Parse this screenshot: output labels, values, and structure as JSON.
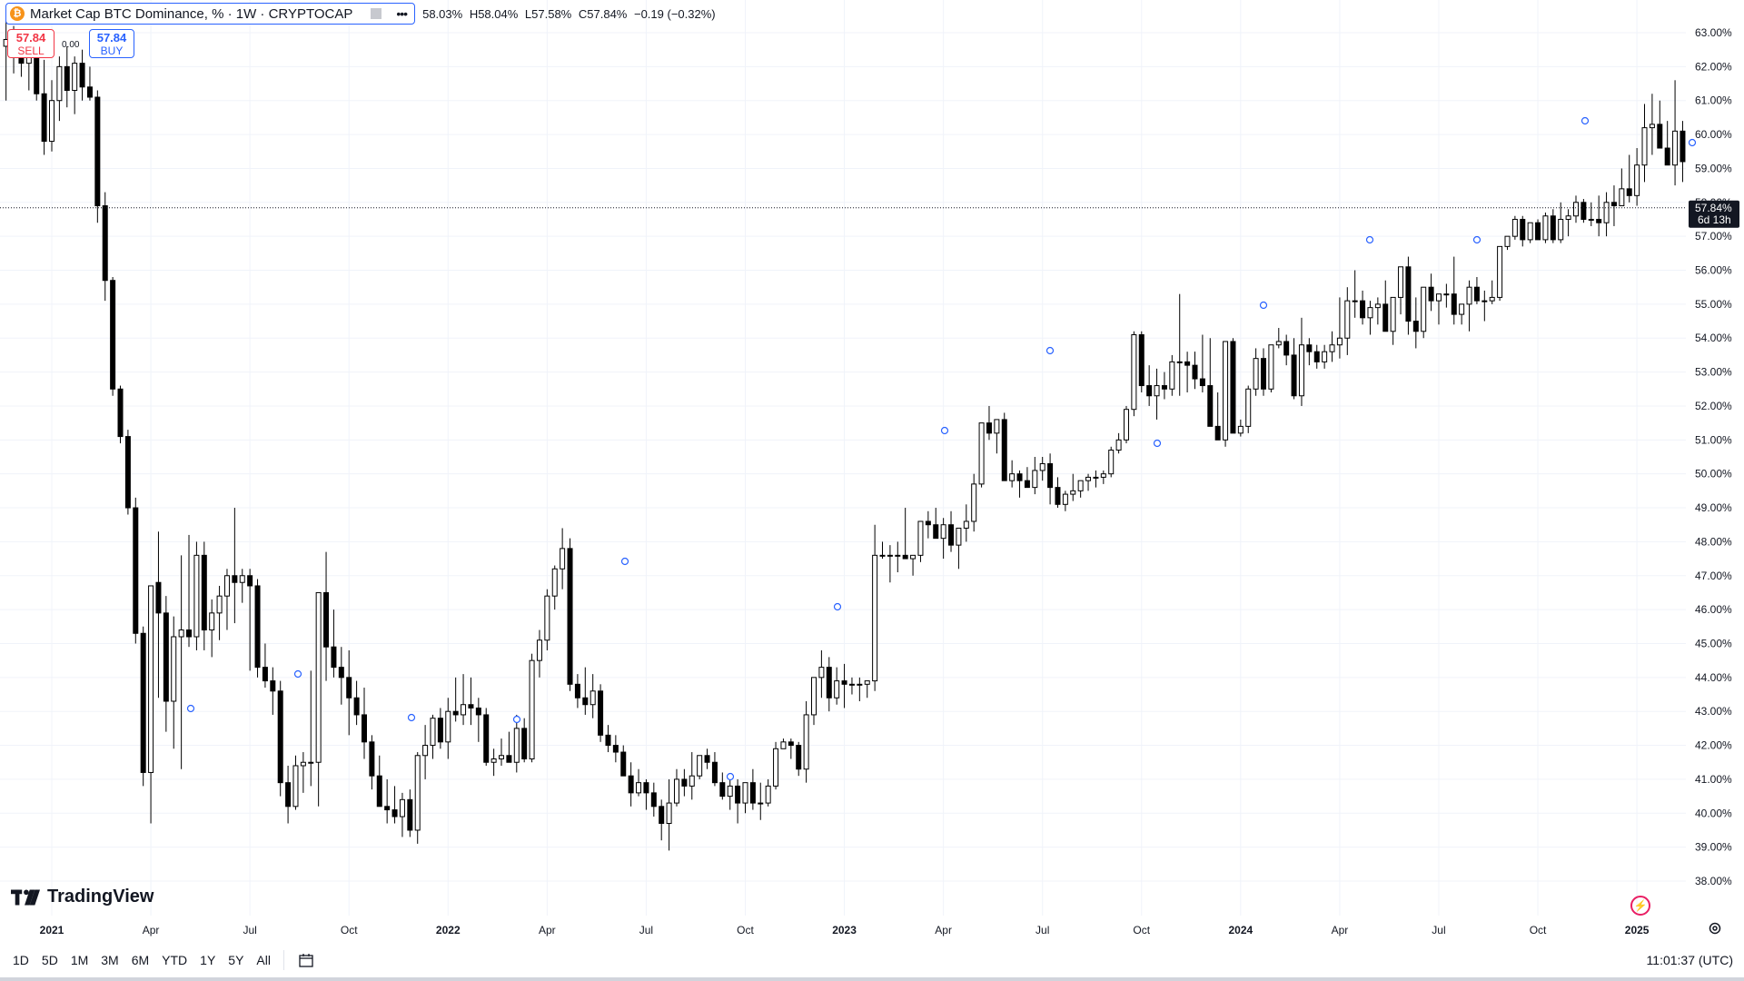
{
  "legend": {
    "title": "Market Cap BTC Dominance, % · 1W · CRYPTOCAP",
    "open": "58.03%",
    "high": "H58.04%",
    "low": "L57.58%",
    "close": "C57.84%",
    "change": "−0.19 (−0.32%)",
    "menu": "•••"
  },
  "trade": {
    "sell_value": "57.84",
    "sell_label": "SELL",
    "buy_value": "57.84",
    "buy_label": "BUY",
    "spread": "0.00"
  },
  "price_axis": {
    "current_price": "57.84%",
    "countdown": "6d 13h"
  },
  "logo": {
    "text": "TradingView"
  },
  "range_buttons": [
    "1D",
    "5D",
    "1M",
    "3M",
    "6M",
    "YTD",
    "1Y",
    "5Y",
    "All"
  ],
  "clock": "11:01:37 (UTC)",
  "colors": {
    "up": "#ffffff",
    "down": "#000000",
    "wick": "#000000",
    "accent": "#2962ff",
    "sell": "#f23645",
    "grid": "#f0f3fa"
  },
  "icons": [
    "bitcoin-icon",
    "calendar-range-icon",
    "settings-gear-icon",
    "lightning-icon"
  ],
  "chart_data": {
    "type": "candlestick",
    "interval": "1W",
    "y_unit": "%",
    "ylim": [
      37.8,
      63.4
    ],
    "y_ticks": [
      "38.00%",
      "39.00%",
      "40.00%",
      "41.00%",
      "42.00%",
      "43.00%",
      "44.00%",
      "45.00%",
      "46.00%",
      "47.00%",
      "48.00%",
      "49.00%",
      "50.00%",
      "51.00%",
      "52.00%",
      "53.00%",
      "54.00%",
      "55.00%",
      "56.00%",
      "57.00%",
      "58.00%",
      "59.00%",
      "60.00%",
      "61.00%",
      "62.00%",
      "63.00%"
    ],
    "x_ticks": [
      {
        "label": "2021",
        "bold": true,
        "w": 0
      },
      {
        "label": "Apr",
        "w": 13
      },
      {
        "label": "Jul",
        "w": 26
      },
      {
        "label": "Oct",
        "w": 39
      },
      {
        "label": "2022",
        "bold": true,
        "w": 52
      },
      {
        "label": "Apr",
        "w": 65
      },
      {
        "label": "Jul",
        "w": 78
      },
      {
        "label": "Oct",
        "w": 91
      },
      {
        "label": "2023",
        "bold": true,
        "w": 104
      },
      {
        "label": "Apr",
        "w": 117
      },
      {
        "label": "Jul",
        "w": 130
      },
      {
        "label": "Oct",
        "w": 143
      },
      {
        "label": "2024",
        "bold": true,
        "w": 156
      },
      {
        "label": "Apr",
        "w": 169
      },
      {
        "label": "Jul",
        "w": 182
      },
      {
        "label": "Oct",
        "w": 195
      },
      {
        "label": "2025",
        "bold": true,
        "w": 208
      }
    ],
    "candles_ohlc": [
      [
        62.6,
        63.4,
        61.0,
        62.8
      ],
      [
        62.8,
        63.2,
        61.8,
        62.3
      ],
      [
        62.3,
        62.9,
        61.7,
        62.1
      ],
      [
        62.1,
        62.8,
        61.3,
        62.4
      ],
      [
        62.4,
        63.0,
        61.0,
        61.2
      ],
      [
        61.2,
        62.2,
        59.4,
        59.8
      ],
      [
        59.8,
        61.6,
        59.5,
        61.0
      ],
      [
        61.0,
        62.3,
        60.4,
        62.0
      ],
      [
        62.0,
        62.6,
        60.8,
        61.3
      ],
      [
        61.3,
        62.3,
        60.6,
        62.1
      ],
      [
        62.1,
        62.5,
        61.0,
        61.4
      ],
      [
        61.4,
        62.0,
        61.0,
        61.1
      ],
      [
        61.1,
        61.3,
        57.4,
        57.9
      ],
      [
        57.9,
        58.3,
        55.1,
        55.7
      ],
      [
        55.7,
        55.8,
        52.3,
        52.5
      ],
      [
        52.5,
        52.6,
        50.9,
        51.1
      ],
      [
        51.1,
        51.3,
        48.8,
        49.0
      ],
      [
        49.0,
        49.3,
        45.0,
        45.3
      ],
      [
        45.3,
        45.5,
        40.8,
        41.2
      ],
      [
        41.2,
        43.2,
        39.7,
        46.7
      ],
      [
        46.8,
        48.3,
        43.4,
        45.9
      ],
      [
        45.9,
        46.4,
        42.4,
        43.3
      ],
      [
        43.3,
        45.8,
        41.9,
        45.2
      ],
      [
        45.2,
        47.6,
        41.3,
        45.4
      ],
      [
        45.4,
        48.2,
        44.9,
        45.2
      ],
      [
        45.2,
        48.0,
        44.8,
        47.6
      ],
      [
        47.6,
        48.0,
        44.8,
        45.4
      ],
      [
        45.4,
        46.3,
        44.6,
        45.9
      ],
      [
        45.9,
        46.7,
        45.1,
        46.4
      ],
      [
        46.4,
        47.2,
        45.4,
        47.0
      ],
      [
        47.0,
        49.0,
        45.6,
        46.8
      ],
      [
        46.8,
        47.2,
        46.2,
        47.0
      ],
      [
        47.0,
        47.2,
        44.2,
        46.7
      ],
      [
        46.7,
        46.9,
        44.0,
        44.3
      ],
      [
        44.3,
        45.0,
        43.7,
        43.9
      ],
      [
        43.9,
        44.3,
        42.9,
        43.6
      ],
      [
        43.6,
        43.9,
        40.5,
        40.9
      ],
      [
        40.9,
        41.4,
        39.7,
        40.2
      ],
      [
        40.2,
        41.7,
        40.1,
        41.4
      ],
      [
        41.4,
        41.8,
        40.6,
        41.5
      ],
      [
        41.5,
        44.2,
        40.8,
        41.5
      ],
      [
        41.5,
        44.9,
        40.2,
        46.5
      ],
      [
        46.5,
        47.7,
        43.9,
        44.9
      ],
      [
        44.9,
        46.0,
        44.0,
        44.3
      ],
      [
        44.3,
        44.9,
        43.2,
        44.0
      ],
      [
        44.0,
        44.8,
        42.3,
        43.4
      ],
      [
        43.4,
        43.9,
        42.6,
        42.9
      ],
      [
        42.9,
        43.7,
        41.6,
        42.1
      ],
      [
        42.1,
        42.3,
        40.7,
        41.1
      ],
      [
        41.1,
        41.7,
        40.2,
        40.2
      ],
      [
        40.2,
        41.0,
        39.7,
        40.1
      ],
      [
        40.1,
        40.8,
        39.7,
        39.9
      ],
      [
        39.9,
        40.6,
        39.3,
        40.4
      ],
      [
        40.4,
        40.7,
        39.3,
        39.5
      ],
      [
        39.5,
        41.8,
        39.1,
        41.7
      ],
      [
        41.7,
        42.6,
        41.0,
        42.0
      ],
      [
        42.0,
        42.9,
        41.6,
        42.8
      ],
      [
        42.8,
        43.1,
        41.9,
        42.1
      ],
      [
        42.1,
        43.4,
        41.6,
        43.0
      ],
      [
        43.0,
        44.0,
        42.7,
        42.9
      ],
      [
        42.9,
        44.1,
        42.6,
        43.2
      ],
      [
        43.2,
        44.0,
        42.6,
        43.1
      ],
      [
        43.1,
        43.4,
        42.1,
        42.9
      ],
      [
        42.9,
        43.1,
        41.4,
        41.5
      ],
      [
        41.5,
        41.9,
        41.1,
        41.6
      ],
      [
        41.6,
        42.2,
        41.4,
        41.7
      ],
      [
        41.7,
        42.4,
        41.5,
        41.5
      ],
      [
        41.5,
        42.9,
        41.2,
        42.5
      ],
      [
        42.5,
        42.8,
        41.5,
        41.6
      ],
      [
        41.6,
        44.7,
        41.5,
        44.5
      ],
      [
        44.5,
        45.4,
        44.0,
        45.1
      ],
      [
        45.1,
        46.6,
        44.8,
        46.4
      ],
      [
        46.4,
        47.3,
        46.0,
        47.2
      ],
      [
        47.2,
        48.4,
        46.6,
        47.8
      ],
      [
        47.8,
        48.1,
        43.6,
        43.8
      ],
      [
        43.8,
        44.1,
        43.1,
        43.4
      ],
      [
        43.4,
        44.3,
        42.9,
        43.2
      ],
      [
        43.2,
        44.1,
        42.8,
        43.6
      ],
      [
        43.6,
        43.8,
        42.1,
        42.3
      ],
      [
        42.3,
        42.6,
        41.8,
        42.0
      ],
      [
        42.0,
        42.3,
        41.5,
        41.8
      ],
      [
        41.8,
        42.0,
        41.1,
        41.1
      ],
      [
        41.1,
        41.5,
        40.2,
        40.6
      ],
      [
        40.6,
        41.3,
        40.5,
        40.9
      ],
      [
        40.9,
        41.0,
        40.1,
        40.6
      ],
      [
        40.6,
        40.9,
        39.9,
        40.2
      ],
      [
        40.2,
        40.4,
        39.2,
        39.7
      ],
      [
        39.7,
        41.0,
        38.9,
        40.3
      ],
      [
        40.3,
        41.3,
        40.2,
        41.0
      ],
      [
        41.0,
        41.3,
        40.5,
        40.8
      ],
      [
        40.8,
        41.8,
        40.4,
        41.1
      ],
      [
        41.1,
        41.7,
        41.0,
        41.7
      ],
      [
        41.7,
        41.9,
        41.3,
        41.5
      ],
      [
        41.5,
        41.8,
        40.8,
        40.9
      ],
      [
        40.9,
        41.2,
        40.4,
        40.5
      ],
      [
        40.5,
        41.0,
        40.1,
        40.8
      ],
      [
        40.8,
        41.0,
        39.7,
        40.3
      ],
      [
        40.3,
        40.9,
        40.0,
        40.9
      ],
      [
        40.9,
        41.3,
        40.1,
        40.3
      ],
      [
        40.3,
        40.9,
        39.8,
        40.3
      ],
      [
        40.3,
        41.0,
        40.2,
        40.8
      ],
      [
        40.8,
        42.1,
        40.7,
        41.9
      ],
      [
        41.9,
        42.2,
        41.9,
        42.1
      ],
      [
        42.1,
        42.2,
        41.6,
        42.0
      ],
      [
        42.0,
        42.1,
        41.1,
        41.3
      ],
      [
        41.3,
        43.3,
        40.9,
        42.9
      ],
      [
        42.9,
        44.0,
        42.6,
        44.0
      ],
      [
        44.0,
        44.8,
        43.4,
        44.3
      ],
      [
        44.3,
        44.6,
        43.0,
        43.4
      ],
      [
        43.4,
        44.3,
        43.2,
        43.9
      ],
      [
        43.9,
        44.4,
        43.1,
        43.8
      ],
      [
        43.8,
        44.0,
        43.5,
        43.8
      ],
      [
        43.8,
        44.0,
        43.3,
        43.8
      ],
      [
        43.8,
        43.9,
        43.4,
        43.9
      ],
      [
        43.9,
        48.5,
        43.6,
        47.6
      ],
      [
        47.6,
        48.0,
        47.5,
        47.6
      ],
      [
        47.6,
        47.9,
        46.8,
        47.6
      ],
      [
        47.6,
        48.0,
        47.1,
        47.6
      ],
      [
        47.6,
        49.0,
        47.5,
        47.5
      ],
      [
        47.5,
        47.5,
        47.0,
        47.6
      ],
      [
        47.6,
        48.6,
        47.4,
        48.6
      ],
      [
        48.6,
        48.9,
        48.1,
        48.5
      ],
      [
        48.5,
        49.0,
        48.3,
        48.1
      ],
      [
        48.1,
        48.7,
        47.5,
        48.5
      ],
      [
        48.5,
        48.9,
        47.7,
        47.9
      ],
      [
        47.9,
        48.3,
        47.2,
        48.4
      ],
      [
        48.4,
        49.1,
        48.0,
        48.6
      ],
      [
        48.6,
        50.0,
        48.3,
        49.7
      ],
      [
        49.7,
        51.3,
        49.6,
        51.5
      ],
      [
        51.5,
        52.0,
        51.0,
        51.2
      ],
      [
        51.2,
        51.6,
        50.6,
        51.6
      ],
      [
        51.6,
        51.8,
        50.9,
        49.8
      ],
      [
        49.8,
        50.4,
        49.6,
        50.0
      ],
      [
        50.0,
        50.1,
        49.3,
        49.8
      ],
      [
        49.8,
        50.2,
        49.6,
        49.6
      ],
      [
        49.6,
        50.5,
        49.4,
        50.1
      ],
      [
        50.1,
        50.5,
        49.8,
        50.3
      ],
      [
        50.3,
        50.6,
        49.1,
        49.6
      ],
      [
        49.6,
        49.9,
        49.0,
        49.1
      ],
      [
        49.1,
        49.5,
        48.9,
        49.4
      ],
      [
        49.4,
        50.0,
        49.2,
        49.5
      ],
      [
        49.5,
        49.8,
        49.3,
        49.8
      ],
      [
        49.8,
        50.0,
        49.5,
        49.9
      ],
      [
        49.9,
        50.1,
        49.6,
        49.9
      ],
      [
        49.9,
        50.1,
        49.7,
        50.0
      ],
      [
        50.0,
        50.8,
        49.9,
        50.7
      ],
      [
        50.7,
        51.2,
        50.6,
        51.0
      ],
      [
        51.0,
        52.0,
        50.9,
        51.9
      ],
      [
        51.9,
        54.2,
        51.7,
        54.1
      ],
      [
        54.1,
        54.2,
        52.4,
        52.6
      ],
      [
        52.6,
        53.2,
        52.0,
        52.3
      ],
      [
        52.3,
        53.1,
        51.6,
        52.6
      ],
      [
        52.6,
        53.0,
        52.2,
        52.5
      ],
      [
        52.5,
        53.5,
        52.3,
        53.3
      ],
      [
        53.3,
        55.3,
        52.3,
        53.3
      ],
      [
        53.3,
        53.6,
        52.4,
        53.2
      ],
      [
        53.2,
        53.6,
        52.5,
        52.8
      ],
      [
        52.8,
        54.1,
        52.4,
        52.6
      ],
      [
        52.6,
        54.0,
        51.8,
        51.4
      ],
      [
        51.4,
        52.4,
        51.1,
        51.0
      ],
      [
        51.0,
        53.9,
        50.8,
        53.9
      ],
      [
        53.9,
        54.0,
        51.2,
        51.2
      ],
      [
        51.2,
        51.6,
        51.1,
        51.4
      ],
      [
        51.4,
        52.6,
        51.2,
        52.5
      ],
      [
        52.5,
        53.7,
        52.3,
        53.4
      ],
      [
        53.4,
        53.7,
        52.3,
        52.5
      ],
      [
        52.5,
        53.8,
        52.4,
        53.8
      ],
      [
        53.8,
        54.3,
        53.7,
        53.9
      ],
      [
        53.9,
        54.1,
        53.2,
        53.5
      ],
      [
        53.5,
        54.0,
        52.2,
        52.3
      ],
      [
        52.3,
        54.6,
        52.0,
        53.8
      ],
      [
        53.8,
        54.0,
        53.2,
        53.6
      ],
      [
        53.6,
        53.8,
        53.1,
        53.3
      ],
      [
        53.3,
        53.8,
        53.1,
        53.6
      ],
      [
        53.6,
        54.2,
        53.3,
        53.8
      ],
      [
        53.8,
        55.2,
        53.4,
        54.0
      ],
      [
        54.0,
        55.5,
        53.5,
        55.1
      ],
      [
        55.1,
        56.0,
        54.6,
        55.1
      ],
      [
        55.1,
        55.4,
        54.4,
        54.6
      ],
      [
        54.6,
        55.1,
        54.1,
        54.9
      ],
      [
        54.9,
        55.2,
        54.4,
        55.0
      ],
      [
        55.0,
        55.7,
        54.8,
        54.2
      ],
      [
        54.2,
        55.0,
        53.8,
        55.2
      ],
      [
        55.2,
        56.0,
        54.7,
        56.1
      ],
      [
        56.1,
        56.4,
        54.1,
        54.5
      ],
      [
        54.5,
        55.2,
        53.7,
        54.2
      ],
      [
        54.2,
        54.9,
        54.0,
        55.5
      ],
      [
        55.5,
        55.9,
        54.8,
        55.1
      ],
      [
        55.1,
        55.3,
        54.4,
        55.3
      ],
      [
        55.3,
        55.6,
        54.9,
        55.3
      ],
      [
        55.3,
        56.4,
        54.4,
        54.7
      ],
      [
        54.7,
        55.0,
        54.4,
        55.0
      ],
      [
        55.0,
        55.7,
        54.2,
        55.5
      ],
      [
        55.5,
        55.8,
        55.0,
        55.1
      ],
      [
        55.1,
        55.4,
        54.5,
        55.1
      ],
      [
        55.1,
        55.7,
        55.0,
        55.2
      ],
      [
        55.2,
        56.7,
        55.1,
        56.7
      ],
      [
        56.7,
        57.0,
        56.6,
        57.0
      ],
      [
        57.0,
        57.6,
        56.9,
        57.5
      ],
      [
        57.5,
        57.6,
        56.7,
        56.9
      ],
      [
        56.9,
        57.4,
        56.8,
        57.4
      ],
      [
        57.4,
        57.5,
        56.9,
        56.9
      ],
      [
        56.9,
        57.7,
        56.8,
        57.6
      ],
      [
        57.6,
        57.8,
        56.8,
        56.9
      ],
      [
        56.9,
        58.0,
        56.8,
        57.5
      ],
      [
        57.5,
        57.8,
        57.0,
        57.6
      ],
      [
        57.6,
        58.2,
        57.4,
        58.0
      ],
      [
        58.0,
        58.1,
        57.4,
        57.5
      ],
      [
        57.5,
        58.0,
        57.3,
        57.5
      ],
      [
        57.5,
        58.2,
        57.0,
        57.4
      ],
      [
        57.4,
        58.3,
        57.0,
        58.0
      ],
      [
        58.0,
        58.5,
        57.3,
        57.9
      ],
      [
        57.9,
        59.0,
        57.9,
        58.4
      ],
      [
        58.4,
        59.4,
        58.0,
        58.2
      ],
      [
        58.2,
        59.6,
        57.9,
        59.1
      ],
      [
        59.1,
        60.9,
        58.6,
        60.2
      ],
      [
        60.2,
        61.2,
        59.4,
        60.3
      ],
      [
        60.3,
        61.0,
        59.8,
        59.6
      ],
      [
        59.6,
        60.4,
        59.2,
        59.1
      ],
      [
        59.1,
        61.6,
        58.5,
        60.1
      ],
      [
        60.1,
        60.4,
        58.6,
        59.2
      ],
      [
        59.2,
        59.3,
        56.7,
        56.9
      ],
      [
        56.9,
        57.5,
        54.5,
        55.1
      ],
      [
        55.1,
        57.3,
        55.0,
        57.2
      ],
      [
        57.2,
        58.0,
        56.9,
        57.3
      ],
      [
        57.3,
        59.9,
        57.2,
        58.8
      ],
      [
        58.8,
        58.8,
        57.6,
        58.0
      ],
      [
        58.0,
        58.2,
        57.6,
        57.8
      ]
    ],
    "current": 57.84
  }
}
